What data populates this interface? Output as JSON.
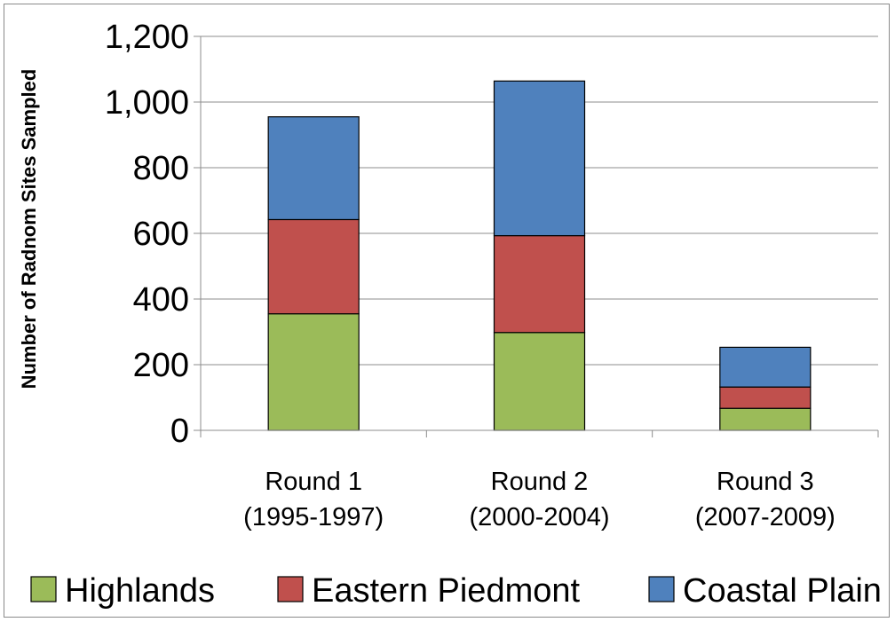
{
  "chart_data": {
    "type": "bar",
    "stacked": true,
    "ylabel": "Number of Radnom Sites Sampled",
    "xlabel": "",
    "ylim": [
      0,
      1200
    ],
    "yticks": [
      0,
      200,
      400,
      600,
      800,
      1000,
      1200
    ],
    "ytick_labels": [
      "0",
      "200",
      "400",
      "600",
      "800",
      "1,000",
      "1,200"
    ],
    "grid": true,
    "legend_position": "bottom",
    "categories": [
      [
        "Round 1",
        "(1995-1997)"
      ],
      [
        "Round 2",
        "(2000-2004)"
      ],
      [
        "Round 3",
        "(2007-2009)"
      ]
    ],
    "series": [
      {
        "name": "Highlands",
        "color": "#9bbb59",
        "values": [
          355,
          298,
          67
        ]
      },
      {
        "name": "Eastern Piedmont",
        "color": "#c0504d",
        "values": [
          287,
          295,
          65
        ]
      },
      {
        "name": "Coastal Plain",
        "color": "#4f81bd",
        "values": [
          313,
          471,
          121
        ]
      }
    ]
  }
}
